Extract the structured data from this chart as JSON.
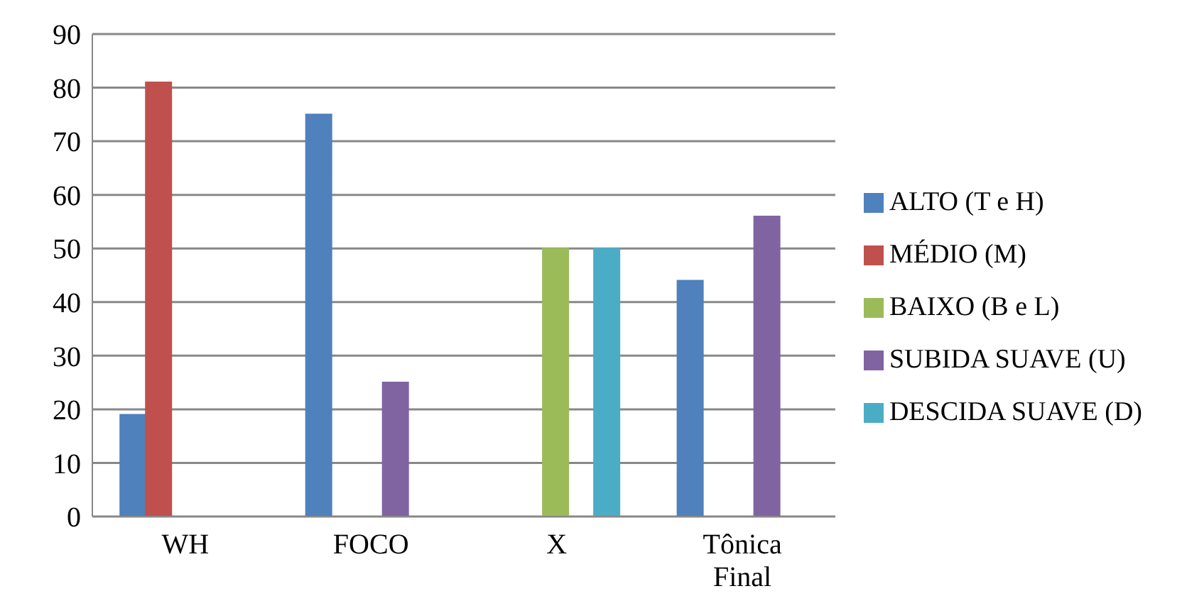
{
  "chart_data": {
    "type": "bar",
    "categories": [
      "WH",
      "FOCO",
      "X",
      "Tônica Final"
    ],
    "series": [
      {
        "name": "ALTO (T e H)",
        "color": "#4f81bd",
        "values": [
          19,
          75,
          0,
          44
        ]
      },
      {
        "name": "MÉDIO (M)",
        "color": "#c0504d",
        "values": [
          81,
          0,
          0,
          0
        ]
      },
      {
        "name": "BAIXO (B e L)",
        "color": "#9bbb59",
        "values": [
          0,
          0,
          50,
          0
        ]
      },
      {
        "name": "SUBIDA SUAVE (U)",
        "color": "#8064a2",
        "values": [
          0,
          25,
          0,
          56
        ]
      },
      {
        "name": "DESCIDA SUAVE (D)",
        "color": "#4bacc6",
        "values": [
          0,
          0,
          50,
          0
        ]
      }
    ],
    "ylim": [
      0,
      90
    ],
    "yticks": [
      0,
      10,
      20,
      30,
      40,
      50,
      60,
      70,
      80,
      90
    ],
    "grid": "y",
    "legend": "right"
  }
}
